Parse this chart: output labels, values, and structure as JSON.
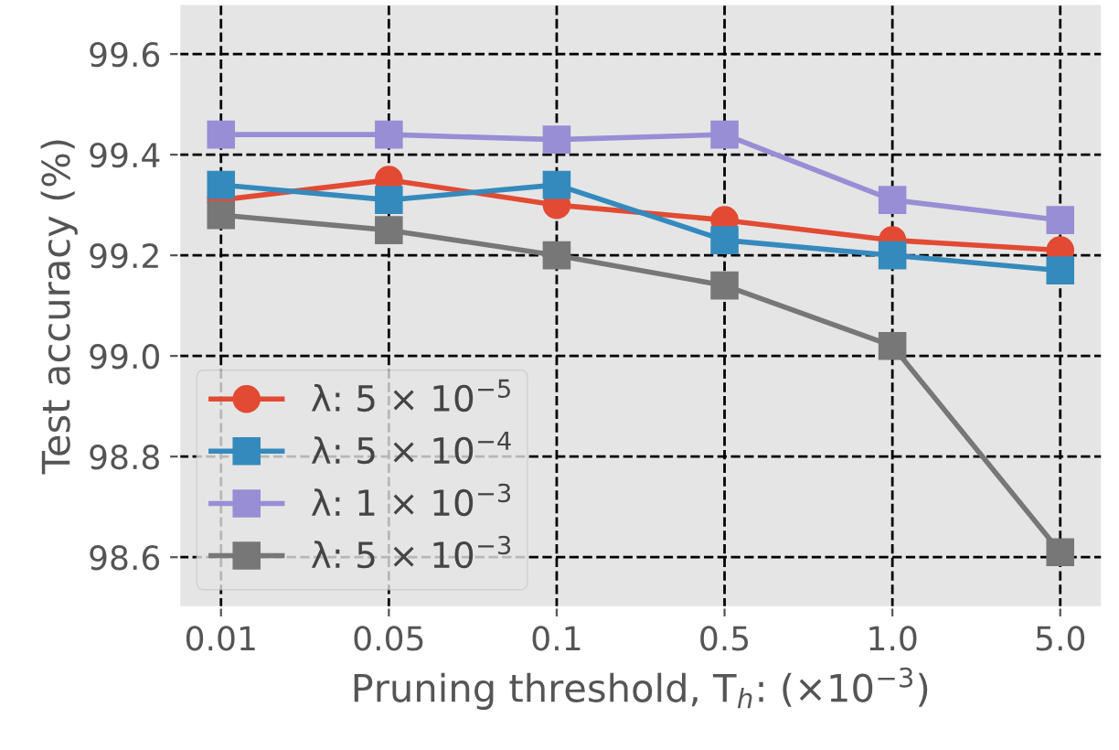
{
  "chart_data": {
    "type": "line",
    "xlabel": "Pruning threshold, T$_{h}$: (×10$^{−3}$)",
    "ylabel": "Test accuracy (%)",
    "categories": [
      "0.01",
      "0.05",
      "0.1",
      "0.5",
      "1.0",
      "5.0"
    ],
    "series": [
      {
        "name": "λ: 5 × 10$^{−5}$",
        "color": "#e24a33",
        "marker": "circle",
        "values": [
          99.31,
          99.35,
          99.3,
          99.27,
          99.23,
          99.21
        ]
      },
      {
        "name": "λ: 5 × 10$^{−4}$",
        "color": "#348abd",
        "marker": "square",
        "values": [
          99.34,
          99.31,
          99.34,
          99.23,
          99.2,
          99.17
        ]
      },
      {
        "name": "λ: 1 × 10$^{−3}$",
        "color": "#988ed5",
        "marker": "square",
        "values": [
          99.44,
          99.44,
          99.43,
          99.44,
          99.31,
          99.27
        ]
      },
      {
        "name": "λ: 5 × 10$^{−3}$",
        "color": "#777777",
        "marker": "square",
        "values": [
          99.28,
          99.25,
          99.2,
          99.14,
          99.02,
          98.61
        ]
      }
    ],
    "ylim": [
      98.5,
      99.7
    ],
    "yticks": [
      98.6,
      98.8,
      {
        "value": 99.0,
        "label": "99.0"
      },
      99.2,
      99.4,
      99.6
    ],
    "grid": true,
    "legend": "bottom left",
    "line_style": "solid"
  }
}
